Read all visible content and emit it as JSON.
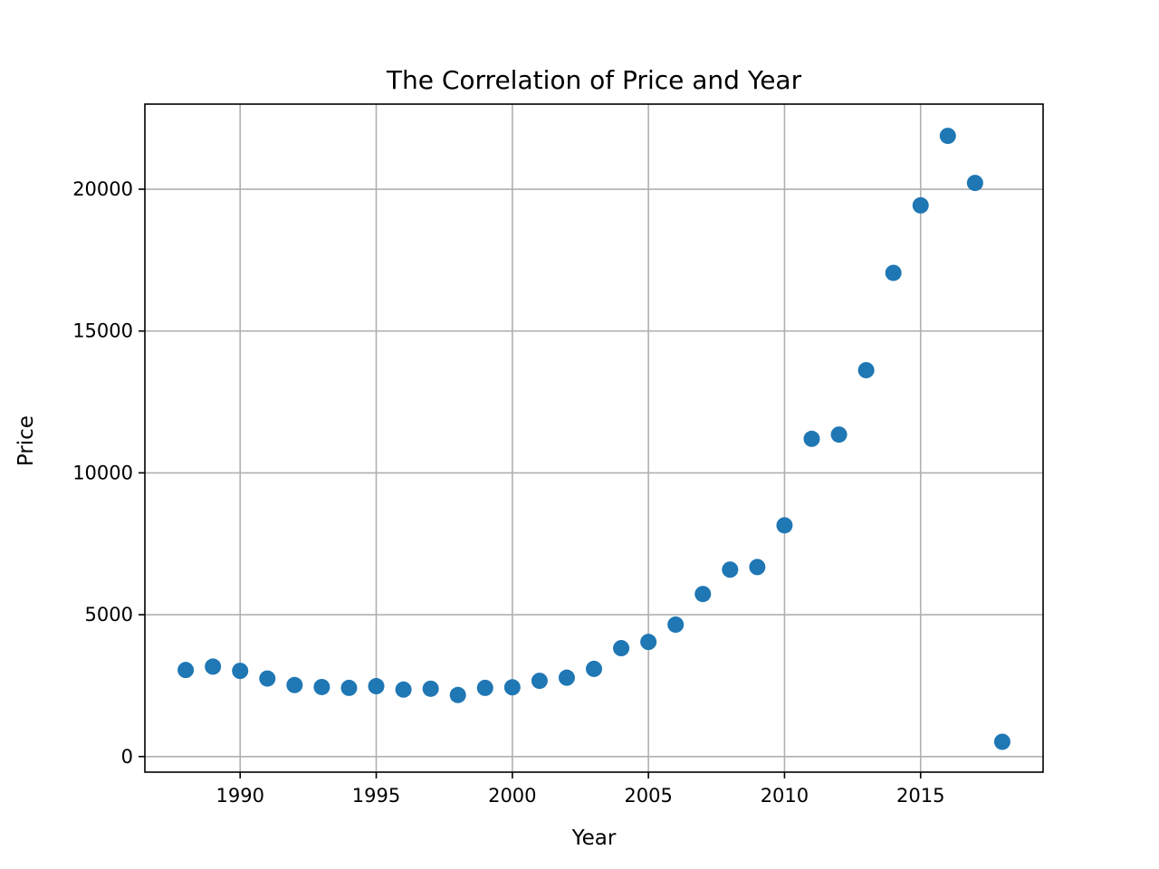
{
  "chart_data": {
    "type": "scatter",
    "title": "The Correlation of Price and Year",
    "xlabel": "Year",
    "ylabel": "Price",
    "xlim": [
      1986.5,
      2019.5
    ],
    "ylim": [
      -550,
      23000
    ],
    "xticks": [
      1990,
      1995,
      2000,
      2005,
      2010,
      2015
    ],
    "yticks": [
      0,
      5000,
      10000,
      15000,
      20000
    ],
    "grid": true,
    "marker_color": "#1f77b4",
    "series": [
      {
        "x": [
          1988,
          1989,
          1990,
          1991,
          1992,
          1993,
          1994,
          1995,
          1996,
          1997,
          1998,
          1999,
          2000,
          2001,
          2002,
          2003,
          2004,
          2005,
          2006,
          2007,
          2008,
          2009,
          2010,
          2011,
          2012,
          2013,
          2014,
          2015,
          2016,
          2017,
          2018
        ],
        "y": [
          3050,
          3170,
          3020,
          2750,
          2520,
          2450,
          2420,
          2480,
          2360,
          2390,
          2170,
          2420,
          2440,
          2670,
          2780,
          3090,
          3820,
          4040,
          4650,
          5730,
          6590,
          6680,
          8150,
          11200,
          11350,
          13620,
          17050,
          19430,
          21880,
          20220,
          520
        ]
      }
    ]
  }
}
